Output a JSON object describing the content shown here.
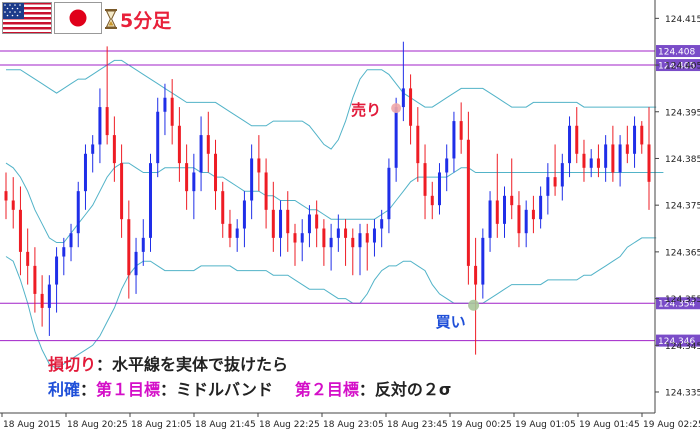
{
  "header": {
    "timeframe": "5分足",
    "flags": [
      "us-flag-icon",
      "japan-flag-icon"
    ],
    "timer_icon": "hourglass-icon"
  },
  "annotations": {
    "sell_label": "売り",
    "buy_label": "買い"
  },
  "notes": {
    "line1_term": "損切り",
    "line1_text": "：水平線を実体で抜けたら",
    "line2_term": "利確",
    "line2_sep": "：",
    "line2_target1": "第１目標",
    "line2_target1_text": "：ミドルバンド",
    "line2_target2": "第２目標",
    "line2_target2_text": "：反対の２σ"
  },
  "colors": {
    "bull": "#1f2ee8",
    "bear": "#ee1c24",
    "band": "#52b3c8",
    "hline": "#a020c8",
    "label_bg": "#7a4cc8",
    "sell": "#e21a3a",
    "buy": "#1f4fd8"
  },
  "chart_data": {
    "type": "candlestick",
    "y_ticks": [
      124.415,
      124.405,
      124.395,
      124.385,
      124.375,
      124.365,
      124.355,
      124.345,
      124.335
    ],
    "y_tick_labels": [
      "124.415",
      "124.405",
      "124.395",
      "124.385",
      "124.375",
      "124.365",
      "124.355",
      "124.345",
      "124.335"
    ],
    "ylim": [
      124.3305,
      124.4185
    ],
    "x_tick_labels": [
      "18 Aug 2015",
      "18 Aug 20:25",
      "18 Aug 21:05",
      "18 Aug 21:45",
      "18 Aug 22:25",
      "18 Aug 23:05",
      "18 Aug 23:45",
      "19 Aug 00:25",
      "19 Aug 01:05",
      "19 Aug 01:45",
      "19 Aug 02:25"
    ],
    "horizontal_lines": [
      {
        "value": 124.408,
        "label": "124.408"
      },
      {
        "value": 124.405,
        "label": "124.405"
      },
      {
        "value": 124.354,
        "label": "124.354"
      },
      {
        "value": 124.346,
        "label": "124.346"
      }
    ],
    "candles": [
      [
        124.378,
        124.382,
        124.372,
        124.376
      ],
      [
        124.376,
        124.381,
        124.37,
        124.374
      ],
      [
        124.374,
        124.379,
        124.36,
        124.365
      ],
      [
        124.365,
        124.37,
        124.358,
        124.362
      ],
      [
        124.362,
        124.366,
        124.352,
        124.356
      ],
      [
        124.356,
        124.36,
        124.349,
        124.353
      ],
      [
        124.353,
        124.36,
        124.347,
        124.358
      ],
      [
        124.358,
        124.366,
        124.352,
        124.364
      ],
      [
        124.364,
        124.368,
        124.36,
        124.366
      ],
      [
        124.366,
        124.371,
        124.363,
        124.369
      ],
      [
        124.369,
        124.38,
        124.366,
        124.378
      ],
      [
        124.378,
        124.388,
        124.374,
        124.386
      ],
      [
        124.386,
        124.39,
        124.382,
        124.388
      ],
      [
        124.388,
        124.4,
        124.384,
        124.396
      ],
      [
        124.396,
        124.409,
        124.388,
        124.39
      ],
      [
        124.39,
        124.394,
        124.38,
        124.384
      ],
      [
        124.384,
        124.388,
        124.368,
        124.372
      ],
      [
        124.372,
        124.376,
        124.355,
        124.36
      ],
      [
        124.36,
        124.368,
        124.356,
        124.365
      ],
      [
        124.365,
        124.372,
        124.362,
        124.368
      ],
      [
        124.368,
        124.386,
        124.365,
        124.384
      ],
      [
        124.384,
        124.398,
        124.381,
        124.395
      ],
      [
        124.395,
        124.401,
        124.39,
        124.398
      ],
      [
        124.398,
        124.402,
        124.388,
        124.392
      ],
      [
        124.392,
        124.396,
        124.38,
        124.384
      ],
      [
        124.384,
        124.388,
        124.374,
        124.378
      ],
      [
        124.378,
        124.386,
        124.372,
        124.382
      ],
      [
        124.382,
        124.394,
        124.378,
        124.39
      ],
      [
        124.39,
        124.395,
        124.382,
        124.386
      ],
      [
        124.386,
        124.389,
        124.374,
        124.378
      ],
      [
        124.378,
        124.38,
        124.368,
        124.371
      ],
      [
        124.371,
        124.374,
        124.366,
        124.368
      ],
      [
        124.368,
        124.372,
        124.365,
        124.37
      ],
      [
        124.37,
        124.378,
        124.366,
        124.376
      ],
      [
        124.376,
        124.388,
        124.372,
        124.385
      ],
      [
        124.385,
        124.39,
        124.378,
        124.382
      ],
      [
        124.382,
        124.385,
        124.37,
        124.374
      ],
      [
        124.374,
        124.38,
        124.365,
        124.368
      ],
      [
        124.368,
        124.376,
        124.364,
        124.374
      ],
      [
        124.374,
        124.378,
        124.365,
        124.369
      ],
      [
        124.369,
        124.371,
        124.362,
        124.367
      ],
      [
        124.367,
        124.372,
        124.363,
        124.369
      ],
      [
        124.369,
        124.375,
        124.366,
        124.373
      ],
      [
        124.373,
        124.376,
        124.366,
        124.37
      ],
      [
        124.37,
        124.372,
        124.362,
        124.366
      ],
      [
        124.366,
        124.371,
        124.361,
        124.368
      ],
      [
        124.368,
        124.373,
        124.365,
        124.37
      ],
      [
        124.37,
        124.372,
        124.362,
        124.368
      ],
      [
        124.368,
        124.37,
        124.36,
        124.366
      ],
      [
        124.366,
        124.371,
        124.36,
        124.369
      ],
      [
        124.369,
        124.371,
        124.361,
        124.367
      ],
      [
        124.367,
        124.372,
        124.364,
        124.37
      ],
      [
        124.37,
        124.374,
        124.366,
        124.372
      ],
      [
        124.372,
        124.385,
        124.369,
        124.383
      ],
      [
        124.383,
        124.398,
        124.38,
        124.396
      ],
      [
        124.396,
        124.41,
        124.393,
        124.4
      ],
      [
        124.4,
        124.403,
        124.388,
        124.392
      ],
      [
        124.392,
        124.396,
        124.38,
        124.384
      ],
      [
        124.384,
        124.388,
        124.372,
        124.377
      ],
      [
        124.377,
        124.38,
        124.372,
        124.375
      ],
      [
        124.375,
        124.384,
        124.373,
        124.382
      ],
      [
        124.382,
        124.388,
        124.378,
        124.385
      ],
      [
        124.385,
        124.395,
        124.382,
        124.393
      ],
      [
        124.393,
        124.397,
        124.386,
        124.389
      ],
      [
        124.389,
        124.395,
        124.358,
        124.362
      ],
      [
        124.362,
        124.368,
        124.343,
        124.358
      ],
      [
        124.358,
        124.37,
        124.355,
        124.368
      ],
      [
        124.368,
        124.378,
        124.365,
        124.376
      ],
      [
        124.376,
        124.386,
        124.368,
        124.371
      ],
      [
        124.371,
        124.379,
        124.368,
        124.377
      ],
      [
        124.377,
        124.385,
        124.372,
        124.375
      ],
      [
        124.375,
        124.378,
        124.366,
        124.369
      ],
      [
        124.369,
        124.376,
        124.366,
        124.374
      ],
      [
        124.374,
        124.377,
        124.369,
        124.372
      ],
      [
        124.372,
        124.379,
        124.37,
        124.377
      ],
      [
        124.377,
        124.384,
        124.373,
        124.381
      ],
      [
        124.381,
        124.388,
        124.377,
        124.379
      ],
      [
        124.379,
        124.386,
        124.376,
        124.384
      ],
      [
        124.384,
        124.394,
        124.381,
        124.392
      ],
      [
        124.392,
        124.396,
        124.384,
        124.386
      ],
      [
        124.386,
        124.389,
        124.38,
        124.383
      ],
      [
        124.383,
        124.387,
        124.381,
        124.385
      ],
      [
        124.385,
        124.388,
        124.381,
        124.383
      ],
      [
        124.383,
        124.39,
        124.38,
        124.388
      ],
      [
        124.388,
        124.392,
        124.38,
        124.382
      ],
      [
        124.382,
        124.39,
        124.379,
        124.388
      ],
      [
        124.388,
        124.392,
        124.384,
        124.386
      ],
      [
        124.386,
        124.394,
        124.383,
        124.392
      ],
      [
        124.392,
        124.393,
        124.386,
        124.388
      ],
      [
        124.388,
        124.396,
        124.374,
        124.38
      ]
    ],
    "bollinger": {
      "upper": [
        124.404,
        124.404,
        124.404,
        124.403,
        124.402,
        124.401,
        124.4,
        124.399,
        124.4,
        124.401,
        124.402,
        124.402,
        124.403,
        124.404,
        124.405,
        124.406,
        124.406,
        124.405,
        124.404,
        124.403,
        124.402,
        124.401,
        124.4,
        124.399,
        124.398,
        124.397,
        124.397,
        124.397,
        124.397,
        124.397,
        124.396,
        124.395,
        124.394,
        124.393,
        124.392,
        124.392,
        124.392,
        124.393,
        124.393,
        124.393,
        124.393,
        124.393,
        124.392,
        124.39,
        124.388,
        124.387,
        124.389,
        124.393,
        124.398,
        124.402,
        124.404,
        124.404,
        124.404,
        124.403,
        124.401,
        124.399,
        124.398,
        124.397,
        124.396,
        124.396,
        124.397,
        124.398,
        124.399,
        124.4,
        124.4,
        124.4,
        124.4,
        124.399,
        124.398,
        124.397,
        124.396,
        124.396,
        124.396,
        124.397,
        124.397,
        124.397,
        124.397,
        124.397,
        124.397,
        124.397,
        124.396,
        124.396,
        124.396,
        124.396,
        124.396,
        124.396,
        124.396,
        124.396,
        124.396,
        124.396,
        124.396
      ],
      "middle": [
        124.384,
        124.383,
        124.381,
        124.378,
        124.374,
        124.371,
        124.368,
        124.367,
        124.367,
        124.369,
        124.371,
        124.373,
        124.375,
        124.378,
        124.381,
        124.383,
        124.384,
        124.384,
        124.383,
        124.382,
        124.382,
        124.382,
        124.383,
        124.383,
        124.383,
        124.383,
        124.383,
        124.382,
        124.382,
        124.381,
        124.381,
        124.38,
        124.379,
        124.378,
        124.378,
        124.378,
        124.377,
        124.377,
        124.376,
        124.376,
        124.376,
        124.375,
        124.374,
        124.374,
        124.373,
        124.372,
        124.372,
        124.372,
        124.372,
        124.372,
        124.372,
        124.372,
        124.373,
        124.374,
        124.376,
        124.378,
        124.38,
        124.381,
        124.381,
        124.381,
        124.381,
        124.381,
        124.382,
        124.383,
        124.383,
        124.382,
        124.382,
        124.382,
        124.382,
        124.382,
        124.382,
        124.382,
        124.382,
        124.382,
        124.382,
        124.382,
        124.382,
        124.382,
        124.382,
        124.382,
        124.382,
        124.382,
        124.382,
        124.382,
        124.382,
        124.382,
        124.382,
        124.382,
        124.382,
        124.382,
        124.382,
        124.382
      ],
      "lower": [
        124.364,
        124.363,
        124.359,
        124.354,
        124.348,
        124.344,
        124.341,
        124.34,
        124.341,
        124.342,
        124.343,
        124.344,
        124.345,
        124.347,
        124.35,
        124.353,
        124.357,
        124.36,
        124.362,
        124.363,
        124.363,
        124.362,
        124.361,
        124.361,
        124.361,
        124.361,
        124.361,
        124.362,
        124.362,
        124.362,
        124.362,
        124.362,
        124.361,
        124.361,
        124.361,
        124.361,
        124.361,
        124.36,
        124.36,
        124.36,
        124.359,
        124.358,
        124.357,
        124.357,
        124.357,
        124.356,
        124.355,
        124.355,
        124.354,
        124.354,
        124.356,
        124.359,
        124.361,
        124.362,
        124.362,
        124.363,
        124.363,
        124.362,
        124.361,
        124.358,
        124.356,
        124.355,
        124.354,
        124.354,
        124.354,
        124.354,
        124.354,
        124.355,
        124.356,
        124.357,
        124.358,
        124.358,
        124.358,
        124.358,
        124.358,
        124.359,
        124.359,
        124.359,
        124.359,
        124.359,
        124.36,
        124.36,
        124.361,
        124.362,
        124.363,
        124.364,
        124.366,
        124.367,
        124.368,
        124.368,
        124.368
      ]
    },
    "signals": [
      {
        "type": "sell",
        "candle": 54,
        "price": 124.396
      },
      {
        "type": "buy",
        "candle": 65,
        "price": 124.354
      }
    ]
  }
}
